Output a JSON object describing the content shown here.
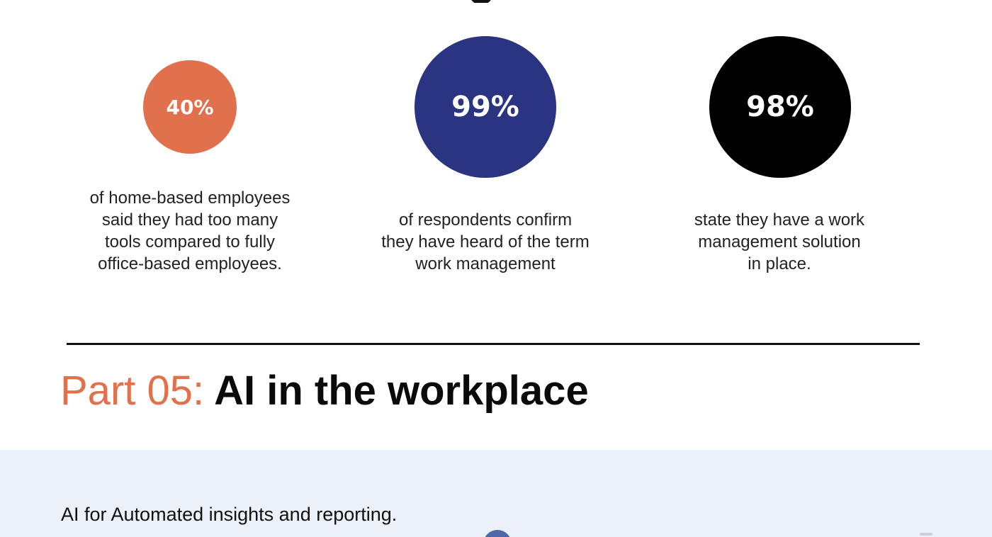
{
  "stats": [
    {
      "value": "40%",
      "color": "#e1714c",
      "description_lines": [
        "of home-based employees",
        "said they had too many",
        "tools compared to fully",
        "office-based employees."
      ]
    },
    {
      "value": "99%",
      "color": "#2b3480",
      "description_lines": [
        "of respondents confirm",
        "they have heard of the term",
        "work management"
      ]
    },
    {
      "value": "98%",
      "color": "#000000",
      "description_lines": [
        "state they have a work",
        "management solution",
        "in place."
      ]
    }
  ],
  "section": {
    "part_label": "Part 05:",
    "part_title": "AI in the workplace",
    "accent_color": "#e1714c"
  },
  "band": {
    "text": "AI for Automated insights and reporting.",
    "background": "#ecf0f8",
    "dot_color": "#4f67ab"
  }
}
